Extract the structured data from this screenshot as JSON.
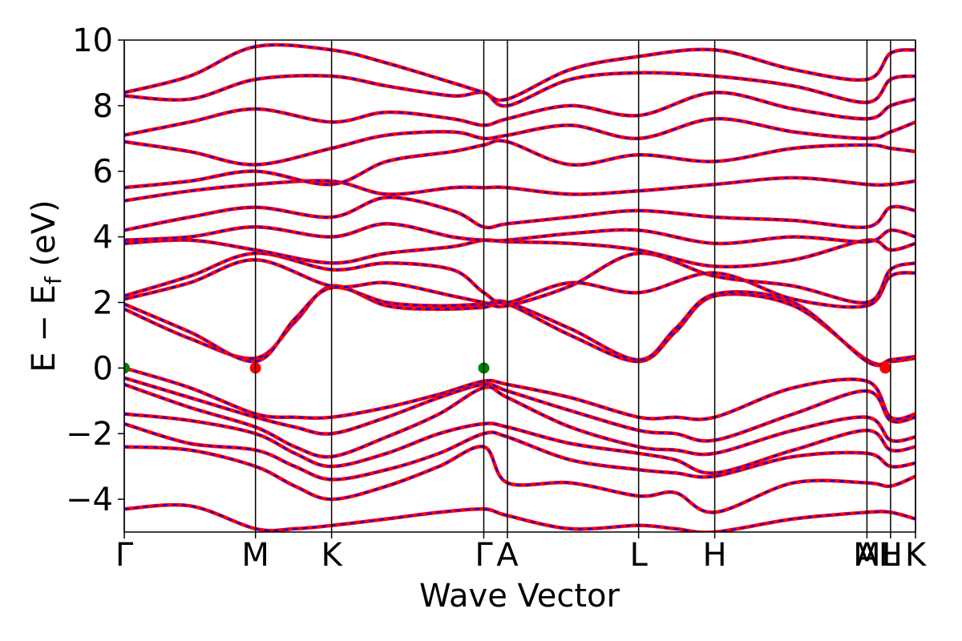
{
  "chart_data": {
    "type": "line",
    "title": "",
    "xlabel": "Wave Vector",
    "ylabel_parts": [
      "E − E",
      "f",
      " (eV)"
    ],
    "ylim": [
      -5,
      10
    ],
    "yticks": [
      {
        "value": 10,
        "label": "10"
      },
      {
        "value": 8,
        "label": "8"
      },
      {
        "value": 6,
        "label": "6"
      },
      {
        "value": 4,
        "label": "4"
      },
      {
        "value": 2,
        "label": "2"
      },
      {
        "value": 0,
        "label": "0"
      },
      {
        "value": -2,
        "label": "−2"
      },
      {
        "value": -4,
        "label": "−4"
      }
    ],
    "xlim": [
      0,
      6.03
    ],
    "kpoints": [
      {
        "label": "Γ",
        "x": 0.0
      },
      {
        "label": "M",
        "x": 1.0
      },
      {
        "label": "K",
        "x": 1.58
      },
      {
        "label": "Γ",
        "x": 2.74
      },
      {
        "label": "A",
        "x": 2.92
      },
      {
        "label": "L",
        "x": 3.92
      },
      {
        "label": "H",
        "x": 4.5
      },
      {
        "label": "A",
        "x": 5.66
      },
      {
        "label": "M",
        "x": 5.66
      },
      {
        "label": "L",
        "x": 5.84
      },
      {
        "label": "H",
        "x": 5.84
      },
      {
        "label": "K",
        "x": 6.03
      }
    ],
    "colors": {
      "band_primary": "#ff0000",
      "band_overlay": "#0000ff",
      "vbm_marker": "#008000",
      "cbm_marker": "#ff0000"
    },
    "series": [
      {
        "x": [
          0.0,
          0.5,
          1.0,
          1.3,
          1.58,
          2.0,
          2.4,
          2.74,
          2.92,
          3.4,
          3.92,
          4.2,
          4.5,
          5.1,
          5.66,
          5.84,
          6.03
        ],
        "y": [
          1.8,
          0.9,
          0.3,
          1.4,
          2.5,
          1.9,
          1.8,
          1.85,
          1.95,
          1.0,
          0.2,
          1.1,
          2.2,
          1.9,
          0.25,
          0.2,
          0.3
        ]
      },
      {
        "x": [
          0.0,
          0.5,
          1.0,
          1.3,
          1.58,
          2.0,
          2.4,
          2.74,
          2.92,
          3.4,
          3.92,
          4.2,
          4.5,
          5.1,
          5.66,
          5.84,
          6.03
        ],
        "y": [
          1.95,
          1.1,
          0.2,
          1.5,
          2.45,
          2.0,
          1.9,
          1.95,
          2.0,
          1.2,
          0.25,
          1.2,
          2.25,
          2.0,
          0.2,
          0.25,
          0.35
        ]
      },
      {
        "x": [
          0.0,
          0.5,
          1.0,
          1.58,
          2.0,
          2.5,
          2.74,
          2.92,
          3.4,
          3.92,
          4.5,
          5.1,
          5.66,
          5.84,
          6.03
        ],
        "y": [
          2.2,
          2.8,
          3.5,
          3.0,
          3.2,
          3.0,
          2.3,
          2.0,
          2.6,
          2.3,
          2.9,
          2.1,
          1.9,
          2.8,
          2.9
        ]
      },
      {
        "x": [
          0.0,
          0.5,
          1.0,
          1.58,
          2.0,
          2.5,
          2.74,
          2.92,
          3.4,
          3.92,
          4.5,
          5.1,
          5.66,
          5.84,
          6.03
        ],
        "y": [
          2.1,
          2.6,
          3.3,
          2.5,
          2.6,
          2.2,
          2.0,
          1.9,
          2.5,
          3.5,
          2.8,
          2.5,
          2.0,
          3.0,
          3.2
        ]
      },
      {
        "x": [
          0.0,
          0.5,
          1.0,
          1.58,
          2.0,
          2.5,
          2.74,
          2.92,
          3.4,
          3.92,
          4.5,
          5.1,
          5.66,
          5.84,
          6.03
        ],
        "y": [
          3.8,
          3.9,
          3.6,
          3.2,
          3.5,
          3.7,
          3.9,
          3.85,
          3.8,
          3.6,
          3.1,
          3.3,
          3.9,
          3.6,
          3.8
        ]
      },
      {
        "x": [
          0.0,
          0.5,
          1.0,
          1.58,
          2.0,
          2.5,
          2.74,
          2.92,
          3.4,
          3.92,
          4.5,
          5.1,
          5.66,
          5.84,
          6.03
        ],
        "y": [
          3.9,
          4.0,
          4.3,
          4.0,
          4.4,
          4.0,
          3.9,
          3.9,
          4.1,
          4.2,
          3.8,
          4.0,
          3.85,
          4.2,
          4.0
        ]
      },
      {
        "x": [
          0.0,
          0.5,
          1.0,
          1.58,
          2.0,
          2.5,
          2.74,
          2.92,
          3.4,
          3.92,
          4.5,
          5.1,
          5.66,
          5.84,
          6.03
        ],
        "y": [
          4.2,
          4.6,
          4.9,
          4.6,
          5.2,
          4.8,
          4.3,
          4.4,
          4.6,
          4.8,
          4.6,
          4.5,
          4.3,
          4.9,
          4.8
        ]
      },
      {
        "x": [
          0.0,
          0.5,
          1.0,
          1.58,
          2.0,
          2.5,
          2.74,
          2.92,
          3.4,
          3.92,
          4.5,
          5.1,
          5.66,
          5.84,
          6.03
        ],
        "y": [
          5.1,
          5.4,
          5.6,
          5.7,
          5.3,
          5.5,
          5.5,
          5.5,
          5.3,
          5.4,
          5.6,
          5.8,
          5.6,
          5.6,
          5.7
        ]
      },
      {
        "x": [
          0.0,
          0.5,
          1.0,
          1.58,
          2.0,
          2.5,
          2.74,
          2.92,
          3.4,
          3.92,
          4.5,
          5.1,
          5.66,
          5.84,
          6.03
        ],
        "y": [
          5.5,
          5.7,
          6.0,
          5.6,
          6.3,
          6.6,
          6.8,
          6.9,
          6.2,
          6.5,
          6.3,
          6.7,
          6.8,
          6.7,
          6.6
        ]
      },
      {
        "x": [
          0.0,
          0.5,
          1.0,
          1.58,
          2.0,
          2.5,
          2.74,
          2.92,
          3.4,
          3.92,
          4.5,
          5.1,
          5.66,
          5.84,
          6.03
        ],
        "y": [
          6.9,
          6.6,
          6.2,
          6.7,
          7.1,
          7.2,
          7.0,
          7.1,
          7.4,
          7.0,
          7.6,
          7.2,
          7.0,
          7.2,
          7.5
        ]
      },
      {
        "x": [
          0.0,
          0.5,
          1.0,
          1.58,
          2.0,
          2.5,
          2.74,
          2.92,
          3.4,
          3.92,
          4.5,
          5.1,
          5.66,
          5.84,
          6.03
        ],
        "y": [
          7.1,
          7.5,
          7.9,
          7.5,
          7.8,
          7.6,
          7.4,
          7.6,
          8.0,
          7.7,
          8.4,
          7.9,
          7.6,
          8.0,
          8.2
        ]
      },
      {
        "x": [
          0.0,
          0.5,
          1.0,
          1.58,
          2.0,
          2.5,
          2.74,
          2.92,
          3.4,
          3.92,
          4.5,
          5.1,
          5.66,
          5.84,
          6.03
        ],
        "y": [
          8.3,
          8.2,
          8.8,
          8.9,
          8.6,
          8.3,
          8.4,
          8.0,
          8.8,
          9.0,
          8.9,
          8.6,
          8.1,
          8.8,
          8.9
        ]
      },
      {
        "x": [
          0.0,
          0.5,
          1.0,
          1.58,
          2.0,
          2.5,
          2.74,
          2.92,
          3.4,
          3.92,
          4.5,
          5.1,
          5.66,
          5.84,
          6.03
        ],
        "y": [
          8.4,
          8.9,
          9.8,
          9.7,
          9.3,
          8.7,
          8.4,
          8.2,
          9.1,
          9.5,
          9.7,
          9.1,
          8.8,
          9.6,
          9.7
        ]
      },
      {
        "x": [
          0.0,
          0.5,
          1.0,
          1.3,
          1.58,
          2.0,
          2.4,
          2.74,
          2.92,
          3.4,
          3.92,
          4.2,
          4.5,
          5.1,
          5.66,
          5.84,
          6.03
        ],
        "y": [
          0.0,
          -0.6,
          -1.4,
          -1.5,
          -1.5,
          -1.2,
          -0.8,
          -0.4,
          -0.5,
          -0.9,
          -1.5,
          -1.5,
          -1.5,
          -0.6,
          -0.4,
          -1.5,
          -1.4
        ]
      },
      {
        "x": [
          0.0,
          0.5,
          1.0,
          1.3,
          1.58,
          2.0,
          2.4,
          2.74,
          2.92,
          3.4,
          3.92,
          4.2,
          4.5,
          5.1,
          5.66,
          5.84,
          6.03
        ],
        "y": [
          -0.3,
          -0.9,
          -1.5,
          -1.8,
          -2.0,
          -1.5,
          -0.9,
          -0.5,
          -0.7,
          -1.3,
          -1.9,
          -2.0,
          -2.2,
          -1.4,
          -0.7,
          -1.6,
          -1.5
        ]
      },
      {
        "x": [
          0.0,
          0.5,
          1.0,
          1.3,
          1.58,
          2.0,
          2.4,
          2.74,
          2.92,
          3.4,
          3.92,
          4.2,
          4.5,
          5.1,
          5.66,
          5.84,
          6.03
        ],
        "y": [
          -0.5,
          -1.2,
          -1.8,
          -2.4,
          -2.7,
          -2.1,
          -1.4,
          -0.6,
          -0.9,
          -1.8,
          -2.4,
          -2.5,
          -2.6,
          -1.9,
          -1.5,
          -2.2,
          -2.1
        ]
      },
      {
        "x": [
          0.0,
          0.5,
          1.0,
          1.3,
          1.58,
          2.0,
          2.4,
          2.74,
          2.92,
          3.4,
          3.92,
          4.2,
          4.5,
          5.1,
          5.66,
          5.84,
          6.03
        ],
        "y": [
          -1.4,
          -1.6,
          -2.0,
          -2.6,
          -3.0,
          -2.6,
          -2.0,
          -1.7,
          -1.8,
          -2.3,
          -2.6,
          -2.8,
          -3.2,
          -2.5,
          -1.9,
          -2.5,
          -2.4
        ]
      },
      {
        "x": [
          0.0,
          0.5,
          1.0,
          1.3,
          1.58,
          2.0,
          2.4,
          2.74,
          2.92,
          3.4,
          3.92,
          4.2,
          4.5,
          5.1,
          5.66,
          5.84,
          6.03
        ],
        "y": [
          -1.7,
          -2.3,
          -2.5,
          -3.0,
          -3.4,
          -3.1,
          -2.6,
          -2.0,
          -2.1,
          -2.8,
          -3.1,
          -3.2,
          -3.3,
          -2.7,
          -2.6,
          -3.0,
          -2.9
        ]
      },
      {
        "x": [
          0.0,
          0.5,
          1.0,
          1.3,
          1.58,
          2.0,
          2.4,
          2.74,
          2.92,
          3.4,
          3.92,
          4.2,
          4.5,
          5.1,
          5.66,
          5.84,
          6.03
        ],
        "y": [
          -2.4,
          -2.5,
          -3.0,
          -3.6,
          -4.0,
          -3.6,
          -3.0,
          -2.4,
          -3.5,
          -3.5,
          -3.9,
          -3.8,
          -4.4,
          -3.5,
          -3.5,
          -3.6,
          -3.3
        ]
      },
      {
        "x": [
          0.0,
          0.5,
          1.0,
          1.3,
          1.58,
          2.0,
          2.4,
          2.74,
          2.92,
          3.4,
          3.92,
          4.2,
          4.5,
          5.1,
          5.66,
          5.84,
          6.03
        ],
        "y": [
          -4.3,
          -4.2,
          -4.9,
          -4.9,
          -4.8,
          -4.6,
          -4.4,
          -4.3,
          -4.5,
          -4.9,
          -4.8,
          -4.9,
          -5.0,
          -4.6,
          -4.4,
          -4.4,
          -4.6
        ]
      }
    ],
    "markers": [
      {
        "x": 0.0,
        "y": 0.0,
        "kind": "vbm"
      },
      {
        "x": 2.74,
        "y": 0.0,
        "kind": "vbm"
      },
      {
        "x": 1.0,
        "y": 0.0,
        "kind": "cbm"
      },
      {
        "x": 5.8,
        "y": 0.0,
        "kind": "cbm"
      }
    ]
  }
}
